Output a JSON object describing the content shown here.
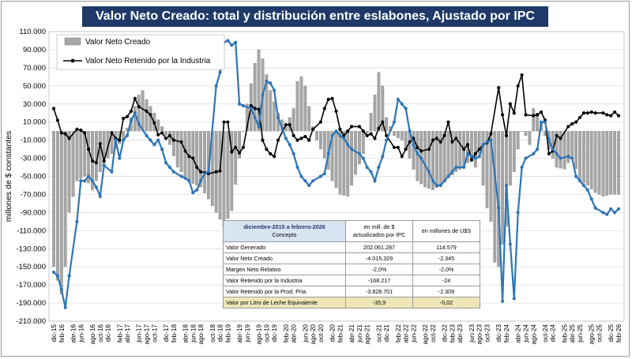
{
  "header": {
    "title": "Valor Neto Creado: total y distribución entre eslabones, Ajustado  por IPC"
  },
  "chart_data": {
    "type": "bar+line",
    "title": "Valor Neto Creado: total y distribución entre eslabones, Ajustado  por IPC",
    "ylabel": "millones de $ constantes",
    "ylim": [
      -210,
      110
    ],
    "yticks": [
      110,
      90,
      70,
      50,
      30,
      10,
      -10,
      -30,
      -50,
      -70,
      -90,
      -110,
      -130,
      -150,
      -170,
      -190,
      -210
    ],
    "ytick_labels": [
      "110.000",
      "90.000",
      "70.000",
      "50.000",
      "30.000",
      "10.000",
      "-10.000",
      "-30.000",
      "-50.000",
      "-70.000",
      "-90.000",
      "-110.000",
      "-130.000",
      "-150.000",
      "-170.000",
      "-190.000",
      "-210.000"
    ],
    "xtick_labels": [
      "dic-15",
      "feb-16",
      "abr-16",
      "jun-16",
      "ago-16",
      "oct-16",
      "dic-16",
      "feb-17",
      "abr-17",
      "jun-17",
      "ago-17",
      "oct-17",
      "dic-17",
      "feb-18",
      "abr-18",
      "jun-18",
      "ago-18",
      "oct-18",
      "dic-18",
      "feb-19",
      "abr-19",
      "jun-19",
      "ago-19",
      "oct-19",
      "dic-19",
      "feb-20",
      "abr-20",
      "jun-20",
      "ago-20",
      "oct-20",
      "dic-20",
      "feb-21",
      "abr-21",
      "jun-21",
      "ago-21",
      "oct-21",
      "dic-21",
      "feb-22",
      "abr-22",
      "jun-22",
      "ago-22",
      "oct-22",
      "dic-22",
      "feb-23",
      "abr-23",
      "jun-23",
      "ago-23",
      "oct-23",
      "dic-23",
      "feb-24",
      "abr-24",
      "jun-24",
      "ago-24",
      "oct-24",
      "dic-24",
      "feb-25",
      "abr-25",
      "jun-25",
      "ago-25",
      "oct-25",
      "dic-25",
      "feb-26"
    ],
    "legend": [
      "Valor Neto Creado",
      "Valor Neto Retenido por la Industria"
    ],
    "legend_position": "top-left",
    "anchors_vnc": [
      [
        0,
        -150
      ],
      [
        2,
        -180
      ],
      [
        3,
        -150
      ],
      [
        4,
        -90
      ],
      [
        6,
        -55
      ],
      [
        8,
        -50
      ],
      [
        10,
        -65
      ],
      [
        12,
        -45
      ],
      [
        14,
        -30
      ],
      [
        16,
        -20
      ],
      [
        18,
        -8
      ],
      [
        20,
        15
      ],
      [
        22,
        40
      ],
      [
        23,
        45
      ],
      [
        24,
        35
      ],
      [
        26,
        20
      ],
      [
        28,
        5
      ],
      [
        30,
        -15
      ],
      [
        32,
        -40
      ],
      [
        34,
        -50
      ],
      [
        36,
        -58
      ],
      [
        38,
        -62
      ],
      [
        40,
        -75
      ],
      [
        42,
        -90
      ],
      [
        44,
        -105
      ],
      [
        46,
        -88
      ],
      [
        48,
        -30
      ],
      [
        50,
        30
      ],
      [
        52,
        75
      ],
      [
        53,
        90
      ],
      [
        54,
        80
      ],
      [
        56,
        45
      ],
      [
        58,
        20
      ],
      [
        60,
        5
      ],
      [
        62,
        25
      ],
      [
        63,
        55
      ],
      [
        64,
        60
      ],
      [
        65,
        50
      ],
      [
        67,
        5
      ],
      [
        68,
        -10
      ],
      [
        70,
        -30
      ],
      [
        72,
        -55
      ],
      [
        74,
        -70
      ],
      [
        76,
        -72
      ],
      [
        78,
        -48
      ],
      [
        80,
        -25
      ],
      [
        82,
        20
      ],
      [
        83,
        40
      ],
      [
        84,
        65
      ],
      [
        85,
        50
      ],
      [
        86,
        15
      ],
      [
        88,
        -5
      ],
      [
        90,
        -10
      ],
      [
        92,
        -30
      ],
      [
        94,
        -55
      ],
      [
        96,
        -62
      ],
      [
        98,
        -65
      ],
      [
        100,
        -60
      ],
      [
        102,
        -52
      ],
      [
        104,
        -45
      ],
      [
        106,
        -40
      ],
      [
        107,
        -35
      ],
      [
        108,
        -30
      ],
      [
        109,
        -40
      ],
      [
        110,
        -25
      ],
      [
        111,
        -60
      ],
      [
        112,
        -85
      ],
      [
        113,
        -100
      ],
      [
        114,
        -145
      ],
      [
        115,
        -150
      ],
      [
        116,
        -125
      ],
      [
        117,
        -105
      ],
      [
        118,
        -60
      ],
      [
        119,
        -45
      ],
      [
        120,
        -20
      ],
      [
        121,
        0
      ],
      [
        122,
        -5
      ],
      [
        123,
        -15
      ],
      [
        124,
        25
      ],
      [
        125,
        20
      ],
      [
        126,
        10
      ],
      [
        128,
        -20
      ],
      [
        130,
        -40
      ],
      [
        132,
        -42
      ],
      [
        134,
        -28
      ],
      [
        136,
        -55
      ],
      [
        138,
        -60
      ],
      [
        140,
        -68
      ],
      [
        142,
        -72
      ],
      [
        144,
        -70
      ],
      [
        145,
        -70
      ]
    ],
    "anchors_retenido": [
      [
        0,
        25
      ],
      [
        1,
        12
      ],
      [
        2,
        -2
      ],
      [
        3,
        -3
      ],
      [
        4,
        -8
      ],
      [
        5,
        2
      ],
      [
        6,
        1
      ],
      [
        7,
        -2
      ],
      [
        8,
        -20
      ],
      [
        9,
        -33
      ],
      [
        10,
        -35
      ],
      [
        11,
        -14
      ],
      [
        12,
        -33
      ],
      [
        13,
        -2
      ],
      [
        14,
        -8
      ],
      [
        15,
        -10
      ],
      [
        16,
        14
      ],
      [
        17,
        16
      ],
      [
        18,
        22
      ],
      [
        19,
        36
      ],
      [
        20,
        27
      ],
      [
        21,
        22
      ],
      [
        22,
        18
      ],
      [
        23,
        9
      ],
      [
        24,
        -4
      ],
      [
        25,
        -2
      ],
      [
        26,
        -8
      ],
      [
        27,
        -5
      ],
      [
        28,
        -10
      ],
      [
        29,
        -12
      ],
      [
        30,
        -22
      ],
      [
        31,
        -28
      ],
      [
        32,
        -30
      ],
      [
        33,
        -40
      ],
      [
        34,
        -45
      ],
      [
        35,
        -46
      ],
      [
        36,
        -47
      ],
      [
        37,
        -45
      ],
      [
        38,
        -44
      ],
      [
        39,
        10
      ],
      [
        40,
        10
      ],
      [
        41,
        -23
      ],
      [
        42,
        -18
      ],
      [
        43,
        -24
      ],
      [
        44,
        -18
      ],
      [
        45,
        28
      ],
      [
        46,
        25
      ],
      [
        47,
        24
      ],
      [
        48,
        -10
      ],
      [
        49,
        -20
      ],
      [
        50,
        -25
      ],
      [
        51,
        -28
      ],
      [
        52,
        -10
      ],
      [
        53,
        7
      ],
      [
        54,
        7
      ],
      [
        55,
        -5
      ],
      [
        56,
        -10
      ],
      [
        57,
        -8
      ],
      [
        58,
        -6
      ],
      [
        59,
        -10
      ],
      [
        60,
        2
      ],
      [
        61,
        10
      ],
      [
        62,
        25
      ],
      [
        63,
        35
      ],
      [
        64,
        36
      ],
      [
        65,
        22
      ],
      [
        66,
        2
      ],
      [
        67,
        -5
      ],
      [
        68,
        0
      ],
      [
        69,
        5
      ],
      [
        70,
        5
      ],
      [
        71,
        0
      ],
      [
        72,
        -5
      ],
      [
        73,
        -3
      ],
      [
        74,
        -8
      ],
      [
        75,
        3
      ],
      [
        76,
        10
      ],
      [
        77,
        -5
      ],
      [
        78,
        -18
      ],
      [
        79,
        -18
      ],
      [
        80,
        -28
      ],
      [
        81,
        -20
      ],
      [
        82,
        -12
      ],
      [
        83,
        -8
      ],
      [
        84,
        -18
      ],
      [
        85,
        -22
      ],
      [
        86,
        -20
      ],
      [
        87,
        -10
      ],
      [
        88,
        -8
      ],
      [
        89,
        -12
      ],
      [
        90,
        -5
      ],
      [
        91,
        10
      ],
      [
        92,
        -12
      ],
      [
        93,
        -8
      ],
      [
        94,
        -20
      ],
      [
        95,
        -15
      ],
      [
        96,
        -32
      ],
      [
        97,
        -25
      ],
      [
        98,
        -20
      ],
      [
        99,
        -15
      ],
      [
        100,
        -13
      ],
      [
        101,
        -3
      ],
      [
        102,
        48
      ],
      [
        103,
        18
      ],
      [
        104,
        -5
      ],
      [
        105,
        30
      ],
      [
        106,
        20
      ],
      [
        107,
        50
      ],
      [
        108,
        62
      ],
      [
        109,
        18
      ],
      [
        110,
        17
      ],
      [
        111,
        18
      ],
      [
        112,
        21
      ],
      [
        113,
        12
      ],
      [
        114,
        -25
      ],
      [
        115,
        -22
      ],
      [
        116,
        -5
      ],
      [
        117,
        -8
      ],
      [
        118,
        5
      ],
      [
        119,
        8
      ],
      [
        120,
        10
      ],
      [
        121,
        15
      ],
      [
        122,
        20
      ],
      [
        123,
        20
      ],
      [
        124,
        21
      ],
      [
        125,
        20
      ],
      [
        126,
        20
      ],
      [
        127,
        18
      ],
      [
        128,
        17
      ],
      [
        129,
        21
      ],
      [
        130,
        17
      ]
    ],
    "anchors_industria": [
      [
        0,
        -156
      ],
      [
        1,
        -160
      ],
      [
        2,
        -175
      ],
      [
        3,
        -195
      ],
      [
        4,
        -160
      ],
      [
        5,
        -100
      ],
      [
        6,
        -55
      ],
      [
        7,
        -55
      ],
      [
        8,
        -50
      ],
      [
        9,
        -55
      ],
      [
        10,
        -62
      ],
      [
        11,
        -72
      ],
      [
        12,
        -38
      ],
      [
        13,
        -45
      ],
      [
        14,
        -10
      ],
      [
        15,
        -30
      ],
      [
        16,
        -10
      ],
      [
        17,
        -5
      ],
      [
        18,
        12
      ],
      [
        19,
        20
      ],
      [
        20,
        8
      ],
      [
        21,
        -5
      ],
      [
        22,
        -10
      ],
      [
        23,
        -15
      ],
      [
        24,
        -10
      ],
      [
        25,
        -20
      ],
      [
        26,
        -35
      ],
      [
        27,
        -40
      ],
      [
        28,
        -45
      ],
      [
        29,
        -50
      ],
      [
        30,
        -52
      ],
      [
        31,
        -55
      ],
      [
        32,
        -68
      ],
      [
        33,
        -65
      ],
      [
        34,
        -55
      ],
      [
        35,
        -47
      ],
      [
        36,
        -45
      ],
      [
        37,
        50
      ],
      [
        38,
        65
      ],
      [
        39,
        98
      ],
      [
        40,
        100
      ],
      [
        41,
        95
      ],
      [
        42,
        98
      ],
      [
        43,
        30
      ],
      [
        44,
        28
      ],
      [
        45,
        25
      ],
      [
        46,
        15
      ],
      [
        47,
        5
      ],
      [
        48,
        40
      ],
      [
        49,
        55
      ],
      [
        50,
        53
      ],
      [
        51,
        45
      ],
      [
        52,
        15
      ],
      [
        53,
        -8
      ],
      [
        54,
        -15
      ],
      [
        55,
        -25
      ],
      [
        56,
        -40
      ],
      [
        57,
        -50
      ],
      [
        58,
        -55
      ],
      [
        59,
        -60
      ],
      [
        60,
        -55
      ],
      [
        61,
        -50
      ],
      [
        62,
        -47
      ],
      [
        63,
        -25
      ],
      [
        64,
        -5
      ],
      [
        65,
        0
      ],
      [
        66,
        -5
      ],
      [
        67,
        -8
      ],
      [
        68,
        -15
      ],
      [
        69,
        -20
      ],
      [
        70,
        -25
      ],
      [
        71,
        -30
      ],
      [
        72,
        -40
      ],
      [
        73,
        -45
      ],
      [
        74,
        -55
      ],
      [
        75,
        -40
      ],
      [
        76,
        -28
      ],
      [
        77,
        -10
      ],
      [
        78,
        10
      ],
      [
        79,
        35
      ],
      [
        80,
        30
      ],
      [
        81,
        25
      ],
      [
        82,
        0
      ],
      [
        83,
        -15
      ],
      [
        84,
        -25
      ],
      [
        85,
        -30
      ],
      [
        86,
        -45
      ],
      [
        87,
        -55
      ],
      [
        88,
        -60
      ],
      [
        89,
        -60
      ],
      [
        90,
        -55
      ],
      [
        91,
        -50
      ],
      [
        92,
        -45
      ],
      [
        93,
        -40
      ],
      [
        94,
        -40
      ],
      [
        95,
        -25
      ],
      [
        96,
        -28
      ],
      [
        97,
        -30
      ],
      [
        98,
        -28
      ],
      [
        99,
        -15
      ],
      [
        100,
        -12
      ],
      [
        101,
        -10
      ],
      [
        102,
        -85
      ],
      [
        103,
        -188
      ],
      [
        104,
        -60
      ],
      [
        105,
        -125
      ],
      [
        106,
        -185
      ],
      [
        107,
        -90
      ],
      [
        108,
        -40
      ],
      [
        109,
        -30
      ],
      [
        110,
        -25
      ],
      [
        111,
        -20
      ],
      [
        112,
        10
      ],
      [
        113,
        10
      ],
      [
        114,
        -10
      ],
      [
        115,
        -20
      ],
      [
        116,
        -25
      ],
      [
        117,
        -30
      ],
      [
        118,
        -28
      ],
      [
        119,
        -30
      ],
      [
        120,
        -50
      ],
      [
        121,
        -55
      ],
      [
        122,
        -60
      ],
      [
        123,
        -65
      ],
      [
        124,
        -75
      ],
      [
        125,
        -85
      ],
      [
        126,
        -90
      ],
      [
        127,
        -92
      ],
      [
        128,
        -86
      ],
      [
        129,
        -90
      ],
      [
        130,
        -86
      ]
    ],
    "table": {
      "header_concepto_line1": "diciembre-2015 a febrero-2026",
      "header_concepto_line2": "Concepto",
      "header_pesos": "en mill. de $ actualizados por IPC",
      "header_usd": "en millones de U$S",
      "rows": [
        {
          "concepto": "Valor Generado",
          "pesos": "202.061.287",
          "usd": "114.579"
        },
        {
          "concepto": "Valor Neto Creado",
          "pesos": "-4.015.329",
          "usd": "-2.345"
        },
        {
          "concepto": "Margen Neto Relativo",
          "pesos": "-2,0%",
          "usd": "-2,0%"
        },
        {
          "concepto": "Valor Retenido por la Industria",
          "pesos": "-168.217",
          "usd": "-24"
        },
        {
          "concepto": "Valor Retenido por la Prod. Pria.",
          "pesos": "-3.828.701",
          "usd": "-2.309"
        },
        {
          "concepto": "Valor por Litro de Leche Equivalente",
          "pesos": "-35,9",
          "usd": "-0,02"
        }
      ]
    }
  },
  "colors": {
    "bars": "#a6a6a6",
    "bars_edge": "#7f7f7f",
    "retenido": "#000000",
    "industria": "#2e75b6",
    "title_bg": "#1f3a68"
  }
}
